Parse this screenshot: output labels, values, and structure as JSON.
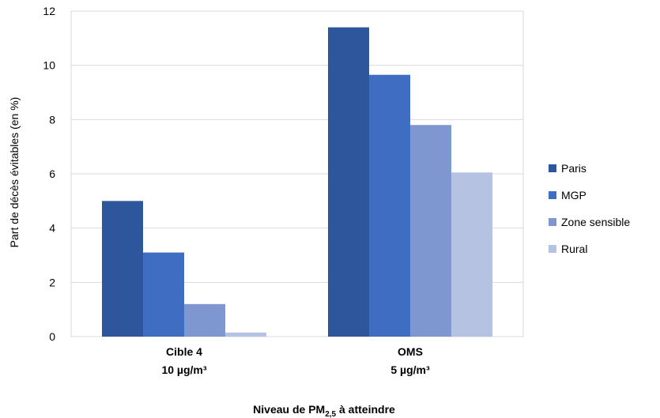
{
  "chart_data": {
    "type": "bar",
    "categories": [
      [
        "Cible 4",
        "10  µg/m³"
      ],
      [
        "OMS",
        "5 µg/m³"
      ]
    ],
    "series": [
      {
        "name": "Paris",
        "values": [
          5.0,
          11.4
        ],
        "color": "#2E569C"
      },
      {
        "name": "MGP",
        "values": [
          3.1,
          9.65
        ],
        "color": "#3F6DC1"
      },
      {
        "name": "Zone sensible",
        "values": [
          1.2,
          7.8
        ],
        "color": "#7F97D1"
      },
      {
        "name": "Rural",
        "values": [
          0.15,
          6.05
        ],
        "color": "#B6C2E2"
      }
    ],
    "ylabel": "Part de décès évitables (en %)",
    "xlabel": {
      "main": "Niveau de PM",
      "sub": "2,5",
      "rest": " à atteindre"
    },
    "ylim": [
      0,
      12
    ],
    "yticks": [
      0,
      2,
      4,
      6,
      8,
      10,
      12
    ],
    "grid": true,
    "legend_position": "right"
  }
}
